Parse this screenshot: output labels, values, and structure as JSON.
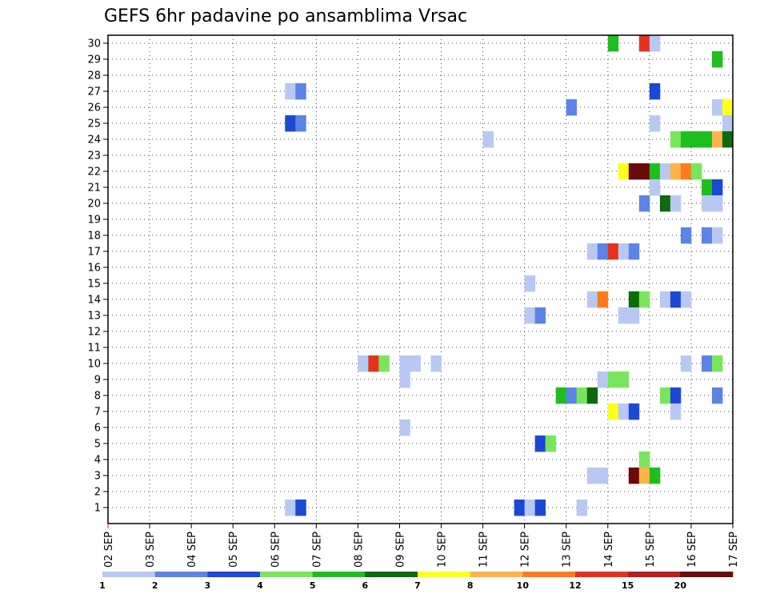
{
  "chart_data": {
    "type": "heatmap",
    "title": "GEFS 6hr padavine po ansamblima Vrsac",
    "xlabel": "",
    "ylabel": "",
    "x_tick_labels": [
      "02 SEP",
      "03 SEP",
      "04 SEP",
      "05 SEP",
      "06 SEP",
      "07 SEP",
      "08 SEP",
      "09 SEP",
      "10 SEP",
      "11 SEP",
      "12 SEP",
      "13 SEP",
      "14 SEP",
      "15 SEP",
      "16 SEP",
      "17 SEP"
    ],
    "y_tick_labels": [
      "1",
      "2",
      "3",
      "4",
      "5",
      "6",
      "7",
      "8",
      "9",
      "10",
      "11",
      "12",
      "13",
      "14",
      "15",
      "16",
      "17",
      "18",
      "19",
      "20",
      "21",
      "22",
      "23",
      "24",
      "25",
      "26",
      "27",
      "28",
      "29",
      "30"
    ],
    "time_steps": 60,
    "time_step_hours": 6,
    "ylim": [
      0,
      30
    ],
    "grid": "dotted",
    "colorbar": {
      "labels": [
        "1",
        "2",
        "3",
        "4",
        "5",
        "6",
        "7",
        "8",
        "10",
        "12",
        "15",
        "20"
      ],
      "colors": [
        "#b8c8f2",
        "#5c84e6",
        "#1c48d6",
        "#78e65c",
        "#1cbf1c",
        "#0d6b0d",
        "#ffff1c",
        "#ffb24a",
        "#ff7a1c",
        "#e6321c",
        "#b81c1c",
        "#6b0a0a"
      ]
    },
    "cells": [
      {
        "m": 30,
        "t": 48,
        "c": 4
      },
      {
        "m": 30,
        "t": 51,
        "c": 9
      },
      {
        "m": 30,
        "t": 52,
        "c": 0
      },
      {
        "m": 29,
        "t": 58,
        "c": 4
      },
      {
        "m": 27,
        "t": 17,
        "c": 0
      },
      {
        "m": 27,
        "t": 18,
        "c": 1
      },
      {
        "m": 27,
        "t": 52,
        "c": 2
      },
      {
        "m": 26,
        "t": 44,
        "c": 1
      },
      {
        "m": 26,
        "t": 58,
        "c": 0
      },
      {
        "m": 26,
        "t": 59,
        "c": 6
      },
      {
        "m": 25,
        "t": 17,
        "c": 2
      },
      {
        "m": 25,
        "t": 18,
        "c": 1
      },
      {
        "m": 25,
        "t": 52,
        "c": 0
      },
      {
        "m": 25,
        "t": 59,
        "c": 0
      },
      {
        "m": 24,
        "t": 36,
        "c": 0
      },
      {
        "m": 24,
        "t": 54,
        "c": 3
      },
      {
        "m": 24,
        "t": 55,
        "c": 4
      },
      {
        "m": 24,
        "t": 56,
        "c": 4
      },
      {
        "m": 24,
        "t": 57,
        "c": 4
      },
      {
        "m": 24,
        "t": 58,
        "c": 7
      },
      {
        "m": 24,
        "t": 59,
        "c": 5
      },
      {
        "m": 22,
        "t": 49,
        "c": 6
      },
      {
        "m": 22,
        "t": 50,
        "c": 11
      },
      {
        "m": 22,
        "t": 51,
        "c": 11
      },
      {
        "m": 22,
        "t": 52,
        "c": 4
      },
      {
        "m": 22,
        "t": 53,
        "c": 0
      },
      {
        "m": 22,
        "t": 54,
        "c": 7
      },
      {
        "m": 22,
        "t": 55,
        "c": 8
      },
      {
        "m": 22,
        "t": 56,
        "c": 3
      },
      {
        "m": 21,
        "t": 52,
        "c": 0
      },
      {
        "m": 21,
        "t": 57,
        "c": 4
      },
      {
        "m": 21,
        "t": 58,
        "c": 2
      },
      {
        "m": 20,
        "t": 51,
        "c": 1
      },
      {
        "m": 20,
        "t": 53,
        "c": 5
      },
      {
        "m": 20,
        "t": 54,
        "c": 0
      },
      {
        "m": 20,
        "t": 57,
        "c": 0
      },
      {
        "m": 20,
        "t": 58,
        "c": 0
      },
      {
        "m": 18,
        "t": 55,
        "c": 1
      },
      {
        "m": 18,
        "t": 57,
        "c": 1
      },
      {
        "m": 18,
        "t": 58,
        "c": 0
      },
      {
        "m": 17,
        "t": 46,
        "c": 0
      },
      {
        "m": 17,
        "t": 47,
        "c": 1
      },
      {
        "m": 17,
        "t": 48,
        "c": 9
      },
      {
        "m": 17,
        "t": 49,
        "c": 0
      },
      {
        "m": 17,
        "t": 50,
        "c": 1
      },
      {
        "m": 15,
        "t": 40,
        "c": 0
      },
      {
        "m": 14,
        "t": 46,
        "c": 0
      },
      {
        "m": 14,
        "t": 47,
        "c": 8
      },
      {
        "m": 14,
        "t": 50,
        "c": 5
      },
      {
        "m": 14,
        "t": 51,
        "c": 3
      },
      {
        "m": 14,
        "t": 53,
        "c": 0
      },
      {
        "m": 14,
        "t": 54,
        "c": 2
      },
      {
        "m": 14,
        "t": 55,
        "c": 0
      },
      {
        "m": 13,
        "t": 40,
        "c": 0
      },
      {
        "m": 13,
        "t": 41,
        "c": 1
      },
      {
        "m": 13,
        "t": 49,
        "c": 0
      },
      {
        "m": 13,
        "t": 50,
        "c": 0
      },
      {
        "m": 10,
        "t": 24,
        "c": 0
      },
      {
        "m": 10,
        "t": 25,
        "c": 9
      },
      {
        "m": 10,
        "t": 26,
        "c": 3
      },
      {
        "m": 10,
        "t": 28,
        "c": 0
      },
      {
        "m": 10,
        "t": 29,
        "c": 0
      },
      {
        "m": 10,
        "t": 31,
        "c": 0
      },
      {
        "m": 10,
        "t": 55,
        "c": 0
      },
      {
        "m": 10,
        "t": 57,
        "c": 1
      },
      {
        "m": 10,
        "t": 58,
        "c": 3
      },
      {
        "m": 9,
        "t": 28,
        "c": 0
      },
      {
        "m": 9,
        "t": 47,
        "c": 0
      },
      {
        "m": 9,
        "t": 48,
        "c": 3
      },
      {
        "m": 9,
        "t": 49,
        "c": 3
      },
      {
        "m": 8,
        "t": 43,
        "c": 4
      },
      {
        "m": 8,
        "t": 44,
        "c": 1
      },
      {
        "m": 8,
        "t": 45,
        "c": 3
      },
      {
        "m": 8,
        "t": 46,
        "c": 5
      },
      {
        "m": 8,
        "t": 53,
        "c": 3
      },
      {
        "m": 8,
        "t": 54,
        "c": 2
      },
      {
        "m": 8,
        "t": 58,
        "c": 1
      },
      {
        "m": 7,
        "t": 48,
        "c": 6
      },
      {
        "m": 7,
        "t": 49,
        "c": 0
      },
      {
        "m": 7,
        "t": 50,
        "c": 2
      },
      {
        "m": 7,
        "t": 54,
        "c": 0
      },
      {
        "m": 6,
        "t": 28,
        "c": 0
      },
      {
        "m": 5,
        "t": 41,
        "c": 2
      },
      {
        "m": 5,
        "t": 42,
        "c": 3
      },
      {
        "m": 4,
        "t": 51,
        "c": 3
      },
      {
        "m": 3,
        "t": 46,
        "c": 0
      },
      {
        "m": 3,
        "t": 47,
        "c": 0
      },
      {
        "m": 3,
        "t": 50,
        "c": 11
      },
      {
        "m": 3,
        "t": 51,
        "c": 7
      },
      {
        "m": 3,
        "t": 52,
        "c": 4
      },
      {
        "m": 1,
        "t": 17,
        "c": 0
      },
      {
        "m": 1,
        "t": 18,
        "c": 2
      },
      {
        "m": 1,
        "t": 39,
        "c": 2
      },
      {
        "m": 1,
        "t": 40,
        "c": 0
      },
      {
        "m": 1,
        "t": 41,
        "c": 2
      },
      {
        "m": 1,
        "t": 45,
        "c": 0
      }
    ]
  }
}
